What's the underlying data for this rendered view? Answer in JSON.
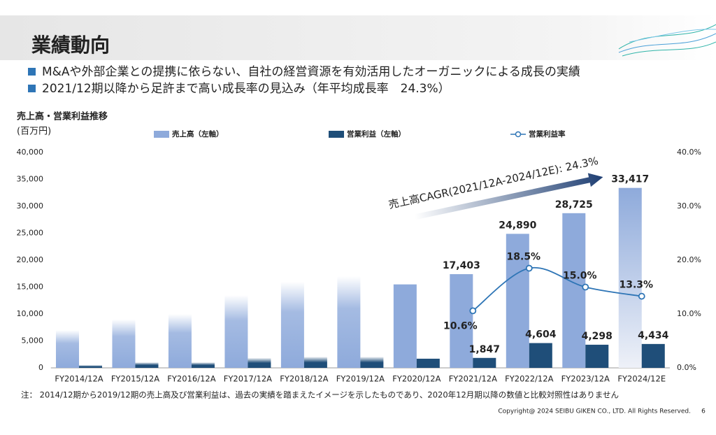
{
  "header": {
    "title": "業績動向"
  },
  "bullets": [
    "M&Aや外部企業との提携に依らない、自社の経営資源を有効活用したオーガニックによる成長の実績",
    "2021/12期以降から足許まで高い成長率の見込み（年平均成長率　24.3%）"
  ],
  "chart_data": {
    "type": "bar",
    "title": "売上高・営業利益推移",
    "y_label": "(百万円)",
    "annotation": "売上高CAGR(2021/12A-2024/12E): 24.3%",
    "categories": [
      "FY2014/12A",
      "FY2015/12A",
      "FY2016/12A",
      "FY2017/12A",
      "FY2018/12A",
      "FY2019/12A",
      "FY2020/12A",
      "FY2021/12A",
      "FY2022/12A",
      "FY2023/12A",
      "FY2024/12E"
    ],
    "series": [
      {
        "name": "売上高（左軸）",
        "color": "#8eaadb",
        "values": [
          7000,
          9000,
          10000,
          13500,
          16000,
          17000,
          15500,
          17403,
          24890,
          28725,
          33417
        ],
        "value_labels": [
          null,
          null,
          null,
          null,
          null,
          null,
          null,
          "17,403",
          "24,890",
          "28,725",
          "33,417"
        ]
      },
      {
        "name": "営業利益（左軸）",
        "color": "#1f4e79",
        "values": [
          500,
          1000,
          1000,
          1800,
          2000,
          2000,
          1700,
          1847,
          4604,
          4298,
          4434
        ],
        "value_labels": [
          null,
          null,
          null,
          null,
          null,
          null,
          null,
          "1,847",
          "4,604",
          "4,298",
          "4,434"
        ]
      },
      {
        "name": "営業利益率",
        "color": "#2e75b6",
        "type": "line",
        "axis": "y2",
        "values": [
          null,
          null,
          null,
          null,
          null,
          null,
          null,
          10.6,
          18.5,
          15.0,
          13.3
        ],
        "value_labels": [
          null,
          null,
          null,
          null,
          null,
          null,
          null,
          "10.6%",
          "18.5%",
          "15.0%",
          "13.3%"
        ]
      }
    ],
    "ylim": [
      0,
      40000
    ],
    "yticks": [
      0,
      {
        "value": 5000,
        "label": "5,000"
      },
      {
        "value": 10000,
        "label": "10,000"
      },
      {
        "value": 15000,
        "label": "15,000"
      },
      {
        "value": 20000,
        "label": "20,000"
      },
      {
        "value": 25000,
        "label": "25,000"
      },
      {
        "value": 30000,
        "label": "30,000"
      },
      {
        "value": 35000,
        "label": "35,000"
      },
      {
        "value": 40000,
        "label": "40,000"
      }
    ],
    "y2lim": [
      0,
      40
    ],
    "y2ticks": [
      {
        "value": 0,
        "label": "0.0%"
      },
      {
        "value": 10,
        "label": "10.0%"
      },
      {
        "value": 20,
        "label": "20.0%"
      },
      {
        "value": 30,
        "label": "30.0%"
      },
      {
        "value": 40,
        "label": "40.0%"
      }
    ],
    "grid": false
  },
  "footnote": "注： 2014/12期から2019/12期の売上高及び営業利益は、過去の実績を踏まえたイメージを示したものであり、2020年12月期以降の数値と比較対照性はありません",
  "footer": {
    "copyright": "Copyright@ 2024 SEIBU GIKEN CO., LTD. All Rights Reserved.",
    "page": "6"
  }
}
